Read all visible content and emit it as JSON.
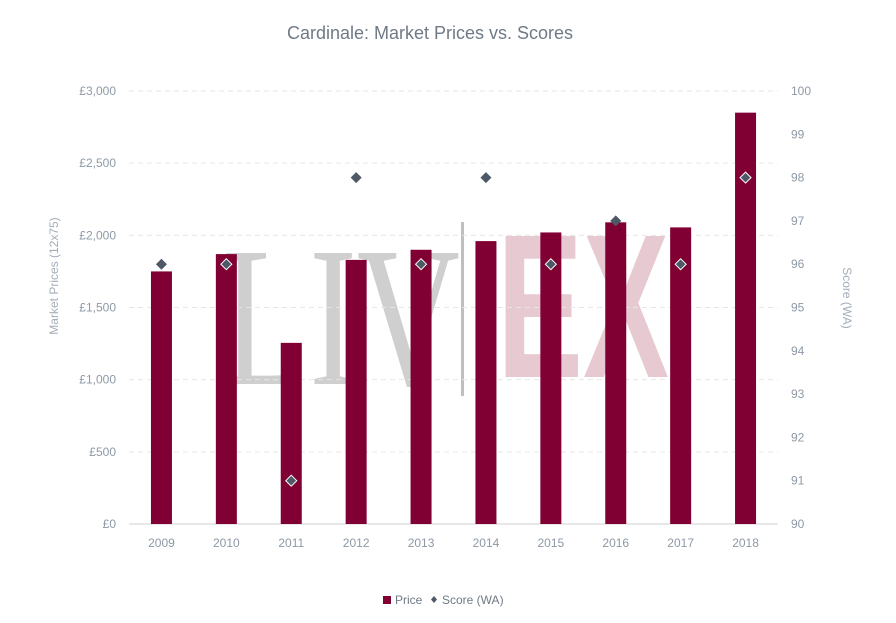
{
  "chart_data": {
    "type": "bar",
    "title": "Cardinale: Market Prices vs. Scores",
    "categories": [
      "2009",
      "2010",
      "2011",
      "2012",
      "2013",
      "2014",
      "2015",
      "2016",
      "2017",
      "2018"
    ],
    "series": [
      {
        "name": "Price",
        "type": "bar",
        "axis": "left",
        "color": "#800033",
        "values": [
          1750,
          1870,
          1255,
          1830,
          1900,
          1960,
          2020,
          2090,
          2055,
          2850
        ]
      },
      {
        "name": "Score (WA)",
        "type": "scatter",
        "axis": "right",
        "color": "#4d5966",
        "values": [
          96,
          96,
          91,
          98,
          96,
          98,
          96,
          97,
          96,
          98
        ]
      }
    ],
    "y_left": {
      "label": "Market Prices (12x75)",
      "ylim": [
        0,
        3000
      ],
      "ticks": [
        "£0",
        "£500",
        "£1,000",
        "£1,500",
        "£2,000",
        "£2,500",
        "£3,000"
      ]
    },
    "y_right": {
      "label": "Score (WA)",
      "ylim": [
        90,
        100
      ],
      "ticks": [
        "90",
        "91",
        "92",
        "93",
        "94",
        "95",
        "96",
        "97",
        "98",
        "99",
        "100"
      ]
    },
    "grid": true,
    "legend": {
      "position": "bottom-center",
      "items": [
        "Price",
        "Score (WA)"
      ]
    },
    "watermark": {
      "left": "LIV",
      "right": "EX"
    }
  }
}
